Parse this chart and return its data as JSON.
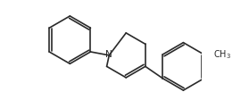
{
  "background": "#ffffff",
  "line_color": "#2a2a2a",
  "line_width": 1.2,
  "dbo": 0.013,
  "text_color": "#2a2a2a",
  "ch3_fontsize": 7.0,
  "n_fontsize": 7.5,
  "figsize": [
    2.79,
    1.22
  ],
  "dpi": 100,
  "xlim": [
    0.0,
    1.0
  ],
  "ylim": [
    0.15,
    0.85
  ]
}
